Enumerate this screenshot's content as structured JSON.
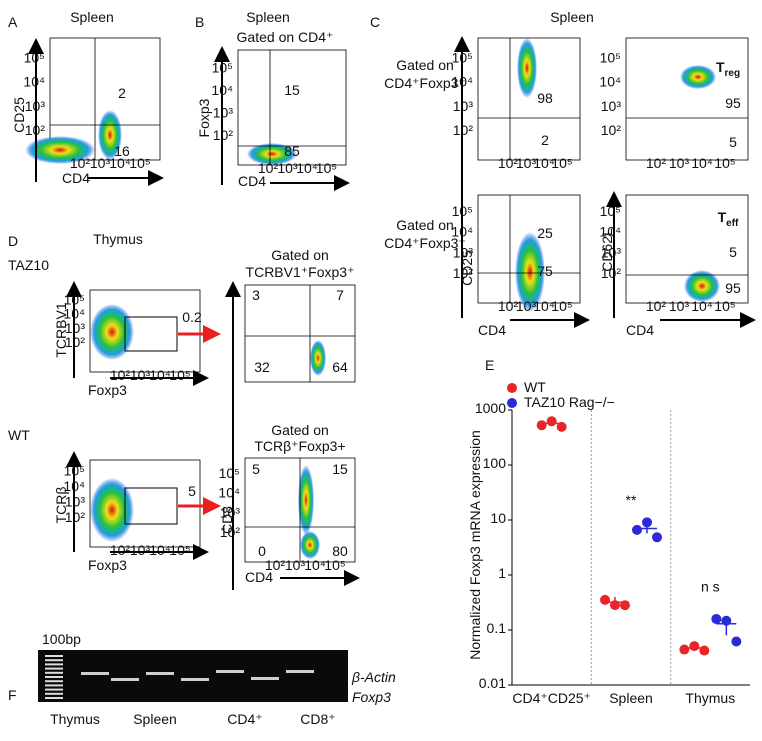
{
  "flow_ticks": [
    "10²",
    "10³",
    "10⁴",
    "10⁵"
  ],
  "panels": {
    "A": {
      "label": "A",
      "title": "Spleen",
      "x_label": "CD4",
      "y_label": "CD25",
      "quadrants": [
        2,
        16
      ]
    },
    "B": {
      "label": "B",
      "title": "Spleen",
      "gate": "Gated on CD4⁺",
      "x_label": "CD4",
      "y_label": "Foxp3",
      "quadrants": [
        15,
        85
      ]
    },
    "C": {
      "label": "C",
      "title": "Spleen",
      "gate_top": [
        "Gated on",
        "CD4⁺Foxp3⁺"
      ],
      "gate_bottom": [
        "Gated on",
        "CD4⁺Foxp3⁻"
      ],
      "x_label_left": "CD4",
      "x_label_right": "CD4",
      "y_label_left": "CD25",
      "y_label_right": "CD62L",
      "treg": {
        "main": "T",
        "sub": "reg"
      },
      "teff": {
        "main": "T",
        "sub": "eff"
      },
      "top_left": [
        98,
        2
      ],
      "top_right": [
        95,
        5
      ],
      "bottom_left": [
        25,
        75
      ],
      "bottom_right": [
        5,
        95
      ]
    },
    "D": {
      "label": "D",
      "title": "Thymus",
      "row_top": "TAZ10",
      "row_bottom": "WT",
      "y_label_top": "TCRBV1",
      "y_label_bottom": "TCRβ",
      "x_label_top": "Foxp3",
      "x_label_bottom": "Foxp3",
      "gate_value_top": 0.2,
      "gate_value_bottom": 5,
      "gate_top": [
        "Gated on",
        "TCRBV1⁺Foxp3⁺"
      ],
      "gate_bottom": [
        "Gated on",
        "TCRβ⁺Foxp3+"
      ],
      "right_top": [
        3,
        7,
        32,
        64
      ],
      "right_bottom": [
        5,
        15,
        0,
        80
      ],
      "x_label_right": "CD4",
      "y_label_right": "CD8"
    },
    "F": {
      "label": "F",
      "ladder": "100bp",
      "bands": [
        "β-Actin",
        "Foxp3"
      ],
      "lanes": [
        "Thymus",
        "Spleen",
        "CD4⁺",
        "CD8⁺"
      ]
    }
  },
  "chart_data": {
    "type": "scatter",
    "label": "E",
    "y_label": "Normalized Foxp3 mRNA expression",
    "log_scale": true,
    "categories": [
      "CD4⁺CD25⁺",
      "Spleen",
      "Thymus"
    ],
    "ylim": [
      0.01,
      1000
    ],
    "yticks": [
      0.01,
      0.1,
      1,
      10,
      100,
      1000
    ],
    "series": [
      {
        "name": "WT",
        "color": "#e8262a",
        "values": [
          [
            600,
            550,
            560
          ],
          [
            0.4,
            0.25,
            0.32
          ],
          [
            0.05,
            0.045,
            0.048
          ]
        ],
        "means": [
          570,
          0.32,
          0.047
        ],
        "errors": [
          30,
          0.08,
          0.004
        ]
      },
      {
        "name": "TAZ10 Rag−/−",
        "color": "#2a2ad8",
        "values": [
          null,
          [
            7.5,
            8,
            5.5
          ],
          [
            0.18,
            0.13,
            0.07
          ]
        ],
        "means": [
          null,
          7,
          0.13
        ],
        "errors": [
          null,
          1.3,
          0.05
        ]
      }
    ],
    "annotations": [
      "**",
      "n s"
    ]
  }
}
